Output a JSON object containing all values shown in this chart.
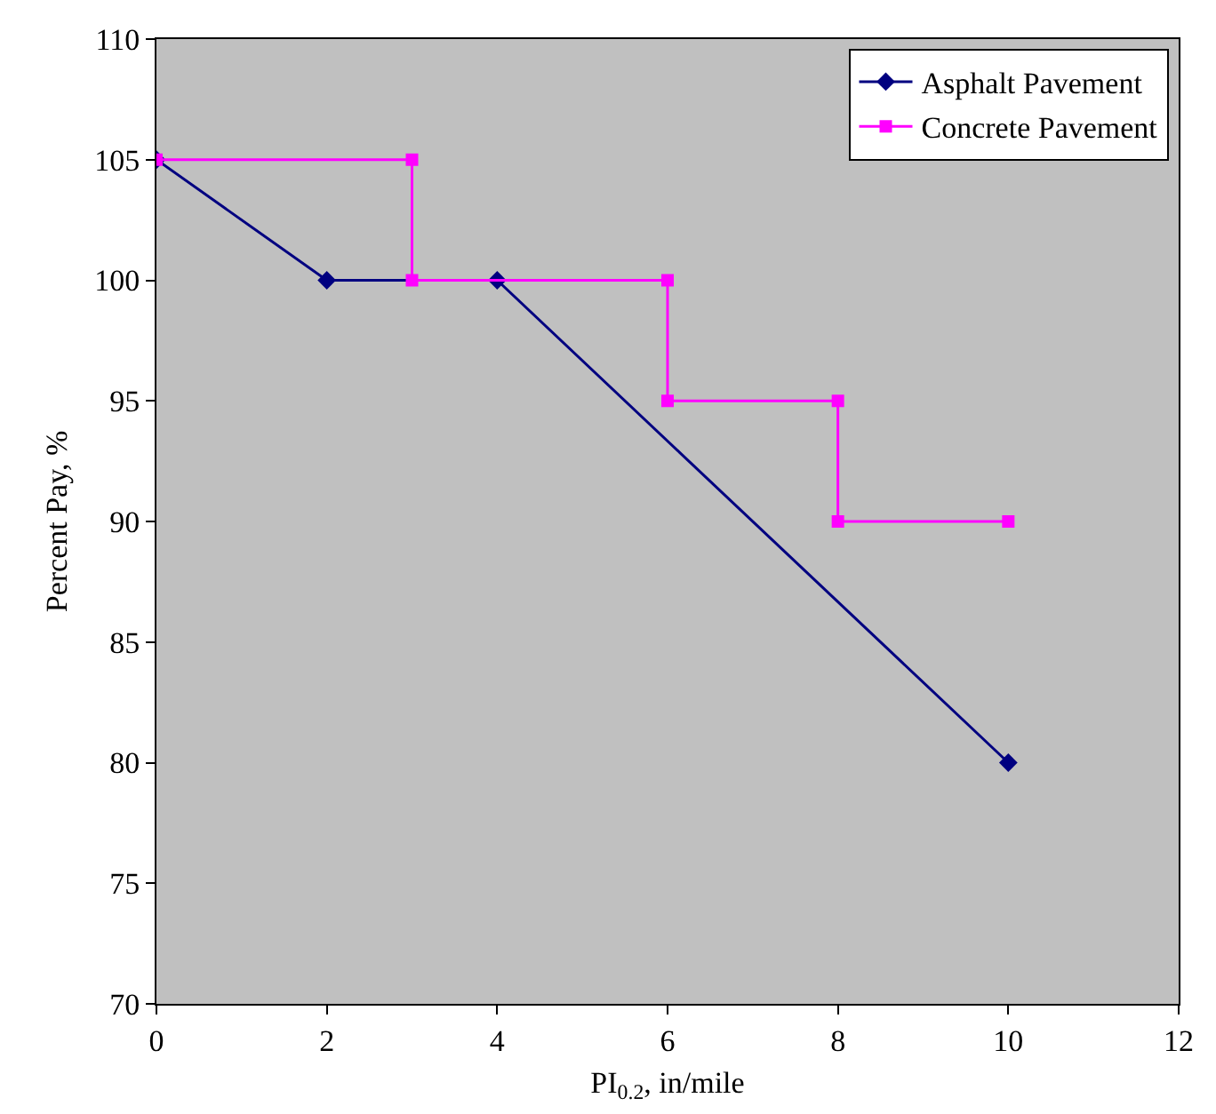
{
  "chart_data": {
    "type": "line",
    "xlabel": "PI$_{0.2}$, in/mile",
    "ylabel": "Percent Pay, %",
    "xlim": [
      0,
      12
    ],
    "xticks": [
      0,
      2,
      4,
      6,
      8,
      10,
      12
    ],
    "ylim": [
      70,
      110
    ],
    "yticks": [
      70,
      75,
      80,
      85,
      90,
      95,
      100,
      105,
      110
    ],
    "grid": false,
    "legend": "top right",
    "line_style": "solid",
    "series": [
      {
        "name": "Asphalt Pavement",
        "color": "#000080",
        "marker": "diamond",
        "x": [
          0,
          2,
          4,
          10
        ],
        "values": [
          105,
          100,
          100,
          80
        ]
      },
      {
        "name": "Concrete Pavement",
        "color": "#ff00ff",
        "marker": "square",
        "x": [
          0,
          3,
          3,
          6,
          6,
          8,
          8,
          10
        ],
        "values": [
          105,
          105,
          100,
          100,
          95,
          95,
          90,
          90
        ]
      }
    ]
  }
}
